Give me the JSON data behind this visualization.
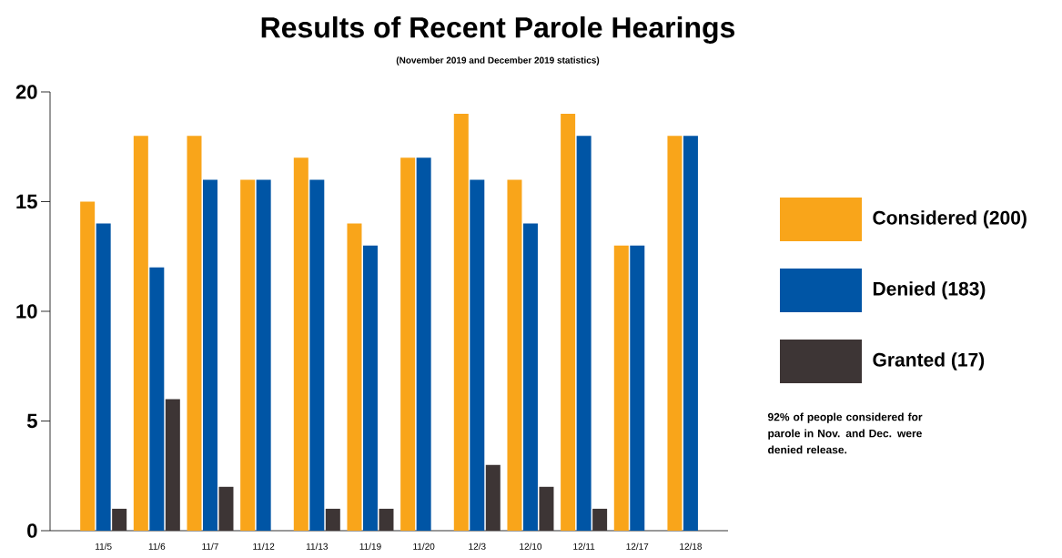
{
  "chart_data": {
    "type": "bar",
    "title": "Results of Recent Parole Hearings",
    "subtitle": "(November 2019 and December 2019 statistics)",
    "categories": [
      "11/5",
      "11/6",
      "11/7",
      "11/12",
      "11/13",
      "11/19",
      "11/20",
      "12/3",
      "12/10",
      "12/11",
      "12/17",
      "12/18"
    ],
    "series": [
      {
        "name": "Considered (200)",
        "color": "#f9a51a",
        "values": [
          15,
          18,
          18,
          16,
          17,
          14,
          17,
          19,
          16,
          19,
          13,
          18
        ]
      },
      {
        "name": "Denied (183)",
        "color": "#0055a5",
        "values": [
          14,
          12,
          16,
          16,
          16,
          13,
          17,
          16,
          14,
          18,
          13,
          18
        ]
      },
      {
        "name": "Granted (17)",
        "color": "#3d3535",
        "values": [
          1,
          6,
          2,
          0,
          1,
          1,
          0,
          3,
          2,
          1,
          0,
          0
        ]
      }
    ],
    "ylim": [
      0,
      20
    ],
    "yticks": [
      0,
      5,
      10,
      15,
      20
    ],
    "legend": "right",
    "annotations": [
      "92% of people considered for parole in Nov. and Dec. were denied release."
    ]
  }
}
